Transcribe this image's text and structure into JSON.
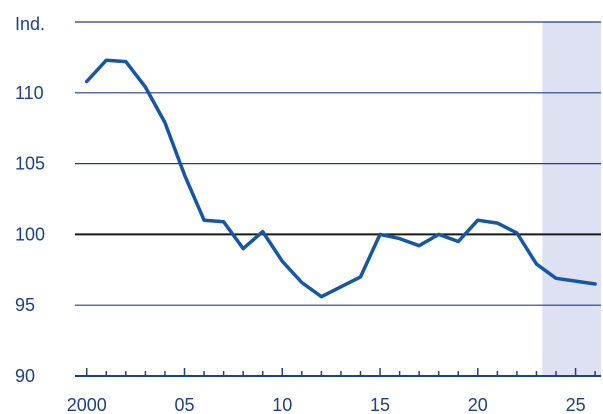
{
  "chart_data": {
    "type": "line",
    "unit_label": "Ind.",
    "x": [
      2000,
      2001,
      2002,
      2003,
      2004,
      2005,
      2006,
      2007,
      2008,
      2009,
      2010,
      2011,
      2012,
      2013,
      2014,
      2015,
      2016,
      2017,
      2018,
      2019,
      2020,
      2021,
      2022,
      2023,
      2024,
      2025,
      2026
    ],
    "series": [
      {
        "values": [
          110.8,
          112.3,
          112.2,
          110.4,
          107.9,
          104.2,
          101.0,
          100.9,
          99.0,
          100.2,
          98.1,
          96.6,
          95.6,
          96.3,
          97.0,
          100.0,
          99.7,
          99.2,
          100.0,
          99.5,
          101.0,
          100.8,
          100.1,
          97.9,
          96.9,
          96.7,
          96.5
        ]
      }
    ],
    "xlim": [
      1999.4,
      2026.3
    ],
    "ylim": [
      90,
      115
    ],
    "y_ticks": [
      90,
      95,
      100,
      105,
      110
    ],
    "y_tick_labels": [
      "90",
      "95",
      "100",
      "105",
      "110"
    ],
    "x_ticks": [
      2000,
      2005,
      2010,
      2015,
      2020,
      2025
    ],
    "x_tick_labels": [
      "2000",
      "05",
      "10",
      "15",
      "20",
      "25"
    ],
    "reference_line": 100,
    "forecast_start": 2023.3,
    "grid": true,
    "colors": {
      "line": "#1557a6",
      "text": "#1f3f8f",
      "grid": "#1f3f8f",
      "reference": "#1a1a1a",
      "forecast_band": "#dde1f1"
    }
  }
}
